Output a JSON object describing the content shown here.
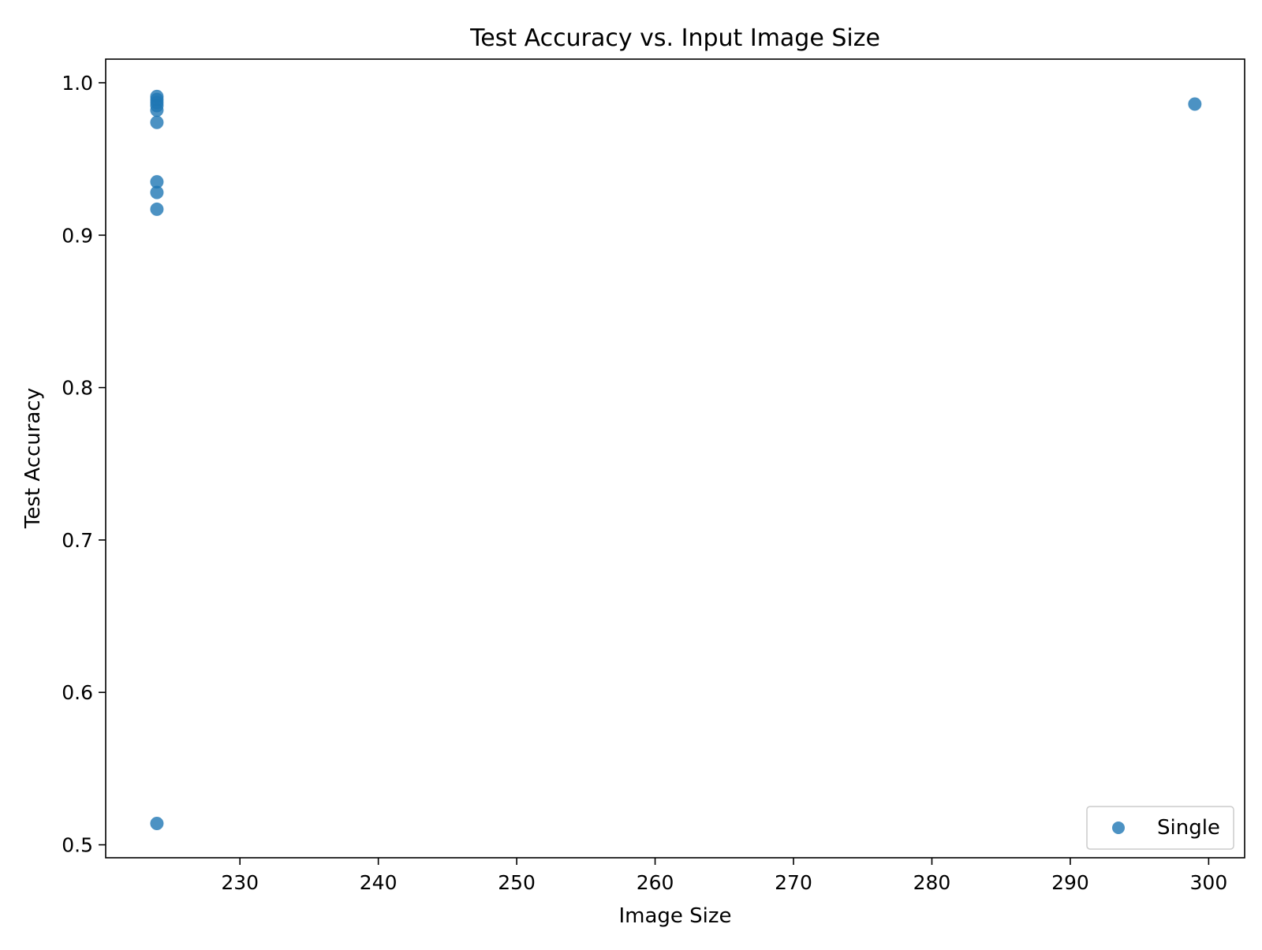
{
  "chart_data": {
    "type": "scatter",
    "title": "Test Accuracy vs. Input Image Size",
    "xlabel": "Image Size",
    "ylabel": "Test Accuracy",
    "xlim": [
      220.3,
      302.6
    ],
    "ylim": [
      0.4915,
      1.0155
    ],
    "xticks": [
      230,
      240,
      250,
      260,
      270,
      280,
      290,
      300
    ],
    "yticks": [
      0.5,
      0.6,
      0.7,
      0.8,
      0.9,
      1.0
    ],
    "grid": false,
    "legend_position": "lower-right",
    "series": [
      {
        "name": "Single",
        "color": "#1f77b4",
        "marker": "circle",
        "points": [
          {
            "x": 224,
            "y": 0.991
          },
          {
            "x": 224,
            "y": 0.989
          },
          {
            "x": 224,
            "y": 0.987
          },
          {
            "x": 224,
            "y": 0.985
          },
          {
            "x": 224,
            "y": 0.982
          },
          {
            "x": 224,
            "y": 0.974
          },
          {
            "x": 224,
            "y": 0.935
          },
          {
            "x": 224,
            "y": 0.928
          },
          {
            "x": 224,
            "y": 0.917
          },
          {
            "x": 224,
            "y": 0.514
          },
          {
            "x": 299,
            "y": 0.986
          }
        ]
      }
    ]
  }
}
